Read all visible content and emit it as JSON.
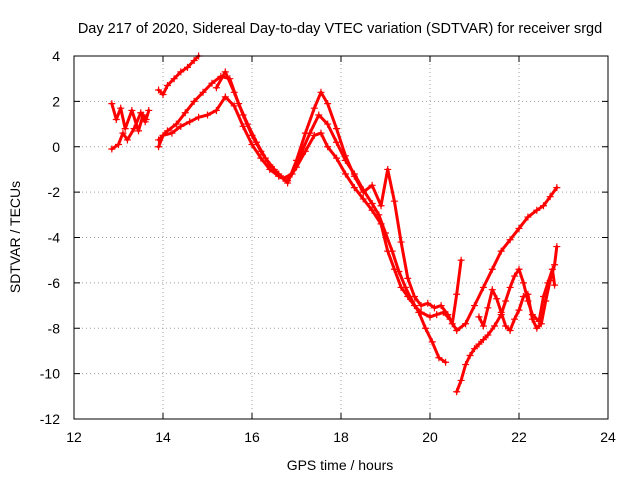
{
  "chart_data": {
    "type": "scatter",
    "title": "Day 217 of 2020, Sidereal Day-to-day VTEC variation (SDTVAR) for receiver srgd",
    "xlabel": "GPS time / hours",
    "ylabel": "SDTVAR / TECUs",
    "xlim": [
      12,
      24
    ],
    "ylim": [
      -12,
      4
    ],
    "xticks": [
      12,
      14,
      16,
      18,
      20,
      22,
      24
    ],
    "yticks": [
      -12,
      -10,
      -8,
      -6,
      -4,
      -2,
      0,
      2,
      4
    ],
    "grid": true,
    "marker": "+",
    "color": "#ff0000",
    "series": [
      {
        "x": [
          12.85,
          12.95,
          13.05,
          13.15,
          13.3,
          13.45,
          13.55,
          13.62,
          13.68
        ],
        "y": [
          1.9,
          1.2,
          1.7,
          0.8,
          1.6,
          0.7,
          1.4,
          1.2,
          1.6
        ]
      },
      {
        "x": [
          12.85,
          13.0,
          13.1,
          13.2,
          13.35,
          13.5,
          13.6
        ],
        "y": [
          -0.1,
          0.1,
          0.6,
          0.3,
          0.8,
          1.5,
          1.1
        ]
      },
      {
        "x": [
          13.9,
          14.0,
          14.1,
          14.25,
          14.4,
          14.55,
          14.7,
          14.8
        ],
        "y": [
          2.5,
          2.3,
          2.7,
          3.0,
          3.3,
          3.5,
          3.8,
          4.0
        ]
      },
      {
        "x": [
          13.9,
          14.0,
          14.2,
          14.4,
          14.6,
          14.8,
          15.0,
          15.2,
          15.4,
          15.6,
          15.8,
          16.0,
          16.2,
          16.4,
          16.6,
          16.8,
          17.0,
          17.2,
          17.4,
          17.55,
          17.7,
          17.9,
          18.1,
          18.3,
          18.5,
          18.7,
          18.9,
          19.05,
          19.2,
          19.35,
          19.5,
          19.65,
          19.8,
          20.0,
          20.15,
          20.3,
          20.45,
          20.6,
          20.8,
          21.0,
          21.2,
          21.4,
          21.6,
          21.8,
          22.0,
          22.2,
          22.4,
          22.55,
          22.7,
          22.85
        ],
        "y": [
          0.0,
          0.5,
          0.6,
          0.9,
          1.1,
          1.3,
          1.4,
          1.6,
          2.2,
          1.8,
          0.9,
          0.1,
          -0.5,
          -1.0,
          -1.3,
          -1.5,
          -0.9,
          -0.2,
          0.5,
          0.6,
          0.0,
          -0.5,
          -1.2,
          -1.8,
          -2.3,
          -2.8,
          -3.4,
          -4.6,
          -5.4,
          -6.2,
          -6.6,
          -7.0,
          -7.3,
          -7.5,
          -7.4,
          -7.3,
          -7.6,
          -8.1,
          -7.8,
          -7.0,
          -6.2,
          -5.4,
          -4.6,
          -4.1,
          -3.6,
          -3.1,
          -2.8,
          -2.6,
          -2.2,
          -1.8
        ]
      },
      {
        "x": [
          13.9,
          14.1,
          14.3,
          14.5,
          14.7,
          14.9,
          15.1,
          15.3,
          15.5,
          15.7,
          15.9,
          16.1,
          16.3,
          16.5,
          16.7,
          16.9,
          17.1,
          17.3,
          17.5,
          17.7,
          17.9,
          18.1,
          18.3,
          18.5,
          18.7,
          18.85,
          19.0,
          19.15,
          19.3,
          19.45,
          19.6,
          19.75,
          19.9,
          20.05,
          20.2,
          20.35
        ],
        "y": [
          0.3,
          0.7,
          1.0,
          1.5,
          2.0,
          2.4,
          2.8,
          3.1,
          3.0,
          1.9,
          1.0,
          0.2,
          -0.5,
          -1.0,
          -1.4,
          -1.2,
          -0.3,
          0.6,
          1.4,
          1.0,
          0.2,
          -0.6,
          -1.2,
          -1.9,
          -2.5,
          -3.0,
          -3.8,
          -4.6,
          -5.5,
          -6.2,
          -6.8,
          -7.3,
          -8.0,
          -8.6,
          -9.3,
          -9.5
        ]
      },
      {
        "x": [
          15.2,
          15.4,
          15.6,
          15.8,
          16.0,
          16.2,
          16.4,
          16.6,
          16.8,
          17.0,
          17.2,
          17.4,
          17.55,
          17.7,
          17.9,
          18.1,
          18.3,
          18.5,
          18.7,
          18.9,
          19.05,
          19.2,
          19.35,
          19.5,
          19.65,
          19.8,
          19.95,
          20.1,
          20.25,
          20.4,
          20.5,
          20.6,
          20.7
        ],
        "y": [
          2.6,
          3.3,
          2.4,
          1.4,
          0.5,
          -0.2,
          -0.8,
          -1.2,
          -1.6,
          -0.6,
          0.6,
          1.7,
          2.4,
          1.9,
          0.8,
          -0.4,
          -1.3,
          -2.0,
          -1.7,
          -2.6,
          -1.0,
          -2.4,
          -4.2,
          -5.8,
          -6.6,
          -7.0,
          -6.9,
          -7.1,
          -7.0,
          -7.4,
          -7.8,
          -6.5,
          -5.0
        ]
      },
      {
        "x": [
          20.6,
          20.7,
          20.8,
          20.9,
          21.0,
          21.1,
          21.2,
          21.3,
          21.45,
          21.6,
          21.7,
          21.8,
          21.9,
          22.0,
          22.1,
          22.2,
          22.3,
          22.45,
          22.55,
          22.65,
          22.75,
          22.8
        ],
        "y": [
          -10.8,
          -10.3,
          -9.6,
          -9.2,
          -8.9,
          -8.7,
          -8.5,
          -8.3,
          -7.9,
          -7.4,
          -6.8,
          -6.2,
          -5.7,
          -5.4,
          -6.0,
          -6.8,
          -7.4,
          -7.7,
          -6.6,
          -6.0,
          -5.4,
          -6.1
        ]
      },
      {
        "x": [
          21.1,
          21.2,
          21.3,
          21.4,
          21.5,
          21.6,
          21.7,
          21.8,
          21.9,
          22.0,
          22.1,
          22.2,
          22.3,
          22.4,
          22.5,
          22.6,
          22.7,
          22.8,
          22.85
        ],
        "y": [
          -7.5,
          -7.9,
          -7.1,
          -6.3,
          -6.7,
          -7.3,
          -7.9,
          -8.1,
          -7.6,
          -7.2,
          -6.6,
          -6.5,
          -7.6,
          -8.0,
          -7.8,
          -6.8,
          -5.9,
          -5.2,
          -4.4
        ]
      }
    ]
  }
}
